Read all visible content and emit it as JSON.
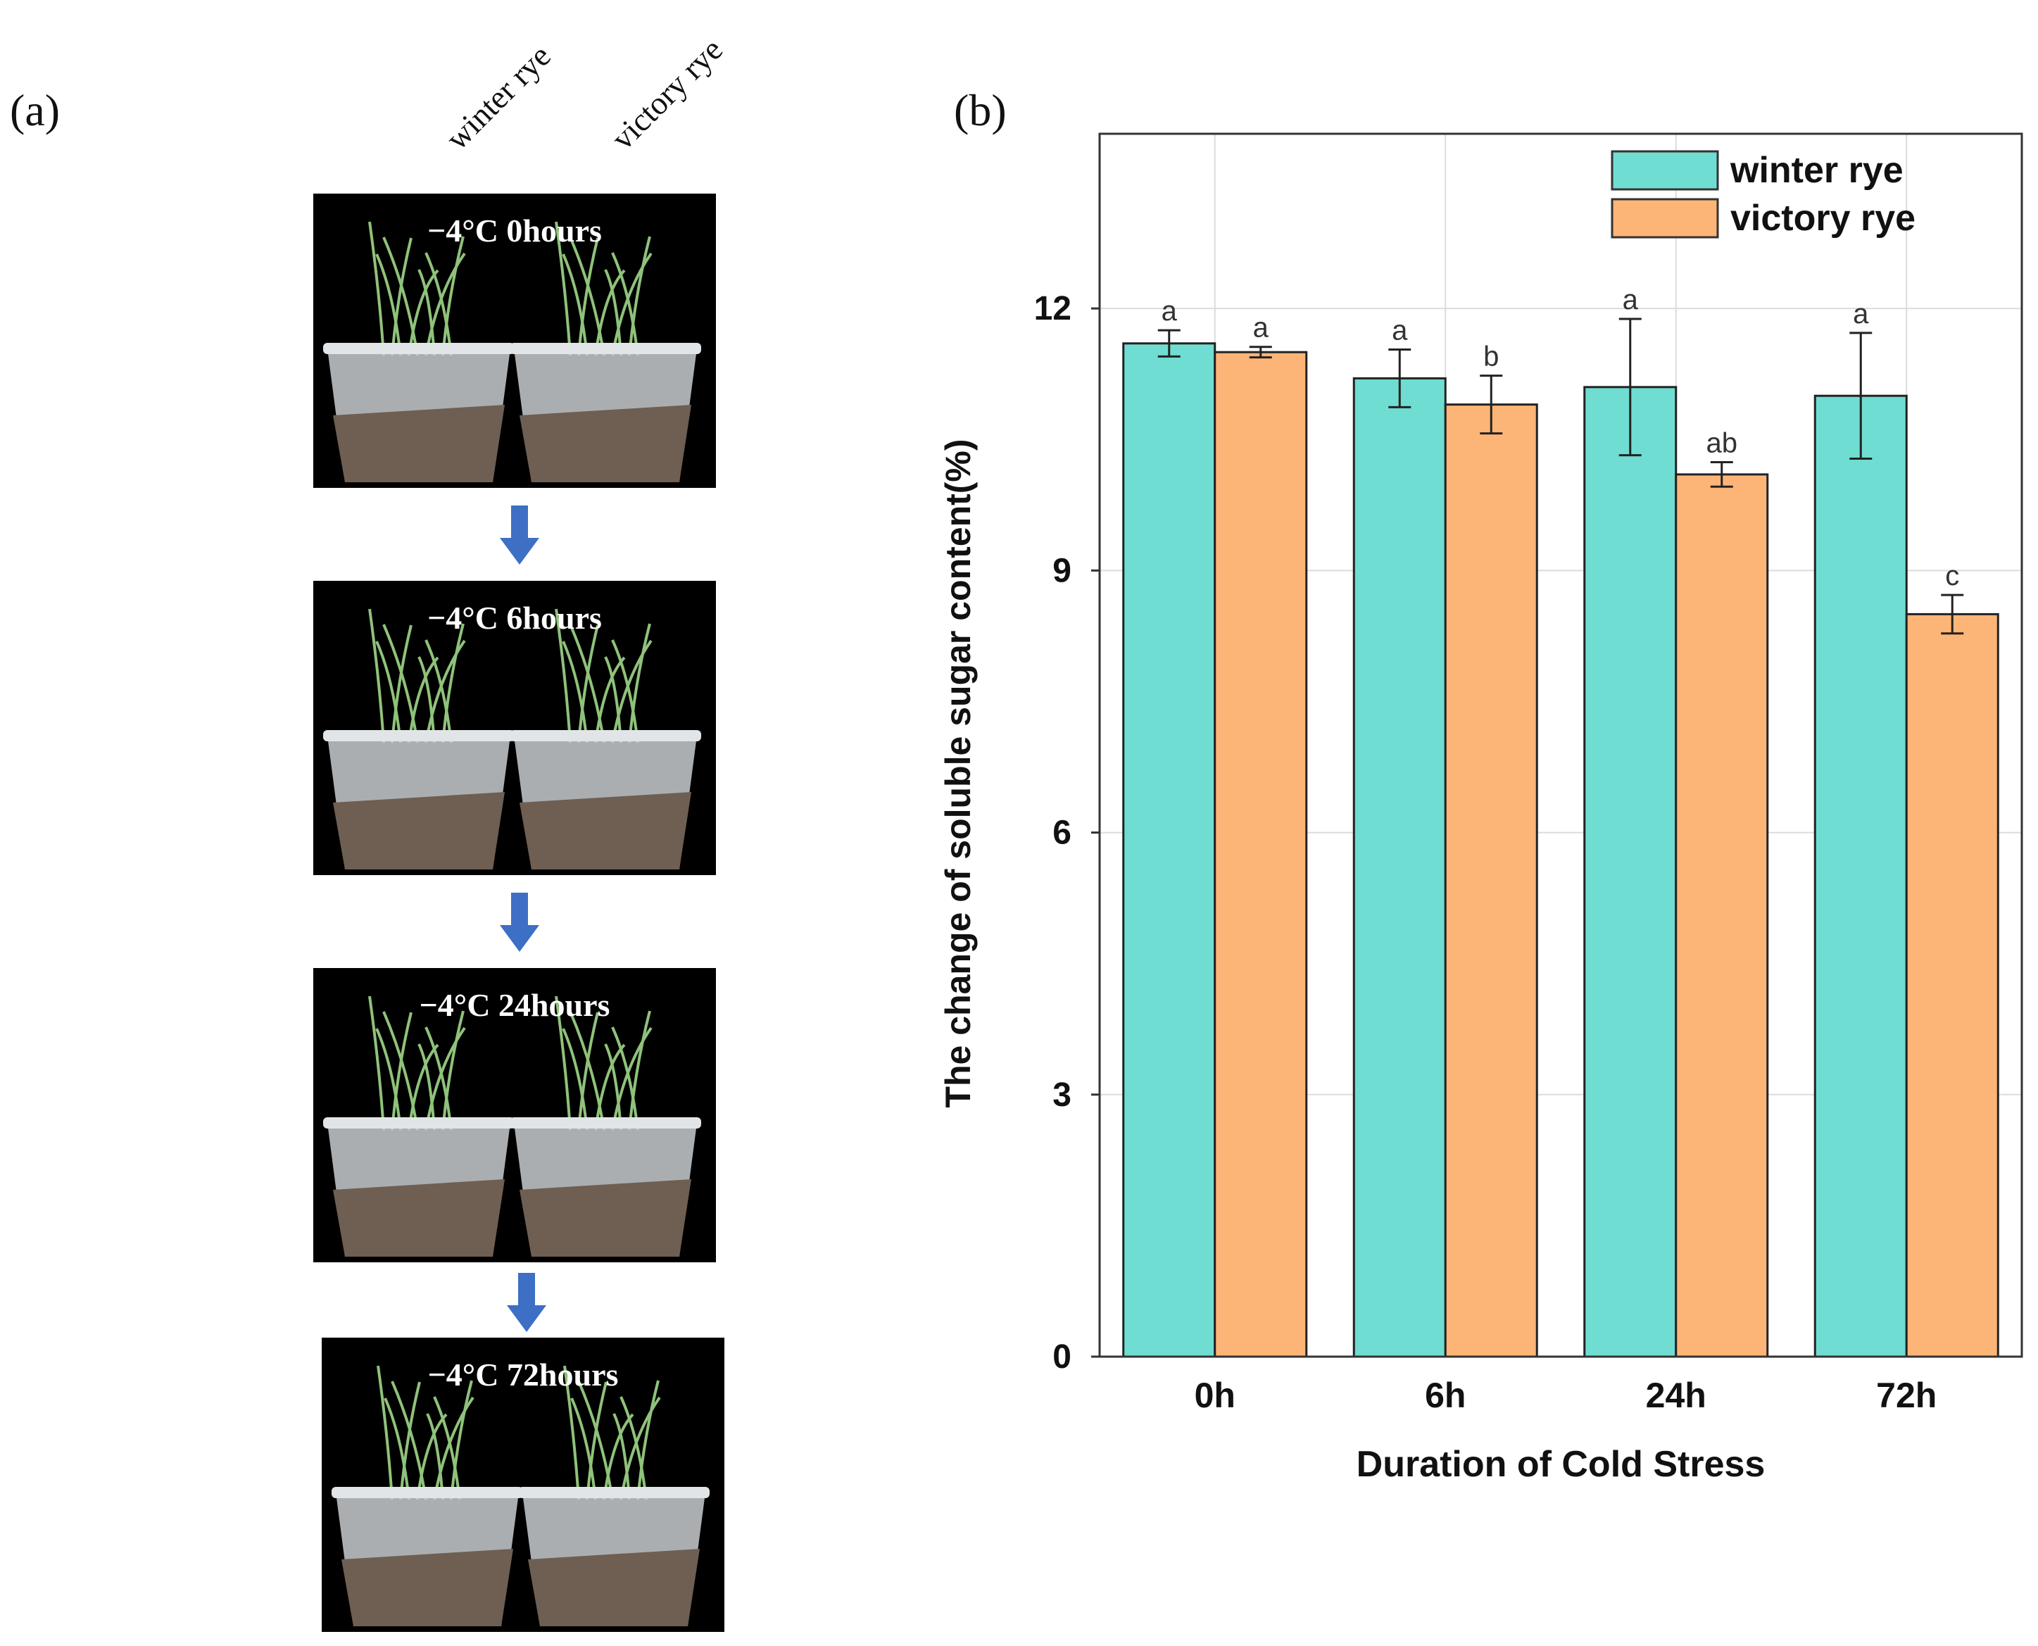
{
  "panel_a": {
    "label": "(a)",
    "columns": [
      "winter rye",
      "victory rye"
    ],
    "photos": [
      {
        "caption": "−4°C 0hours"
      },
      {
        "caption": "−4°C 6hours"
      },
      {
        "caption": "−4°C 24hours"
      },
      {
        "caption": "−4°C 72hours"
      }
    ],
    "arrow_color": "#3d6fc4"
  },
  "panel_b": {
    "label": "(b)"
  },
  "chart_data": {
    "type": "bar",
    "title": "",
    "xlabel": "Duration of Cold Stress",
    "ylabel": "The change of soluble sugar content(%)",
    "categories": [
      "0h",
      "6h",
      "24h",
      "72h"
    ],
    "ylim": [
      0,
      14
    ],
    "yticks": [
      0,
      3,
      6,
      9,
      12
    ],
    "grid": true,
    "legend_position": "top-right",
    "series": [
      {
        "name": "winter rye",
        "color": "#6fddd2",
        "values": [
          11.6,
          11.2,
          11.1,
          11.0
        ],
        "errors": [
          0.15,
          0.33,
          0.78,
          0.72
        ],
        "letters": [
          "a",
          "a",
          "a",
          "a"
        ]
      },
      {
        "name": "victory rye",
        "color": "#fdb577",
        "values": [
          11.5,
          10.9,
          10.1,
          8.5
        ],
        "errors": [
          0.06,
          0.33,
          0.14,
          0.22
        ],
        "letters": [
          "a",
          "b",
          "ab",
          "c"
        ]
      }
    ]
  }
}
